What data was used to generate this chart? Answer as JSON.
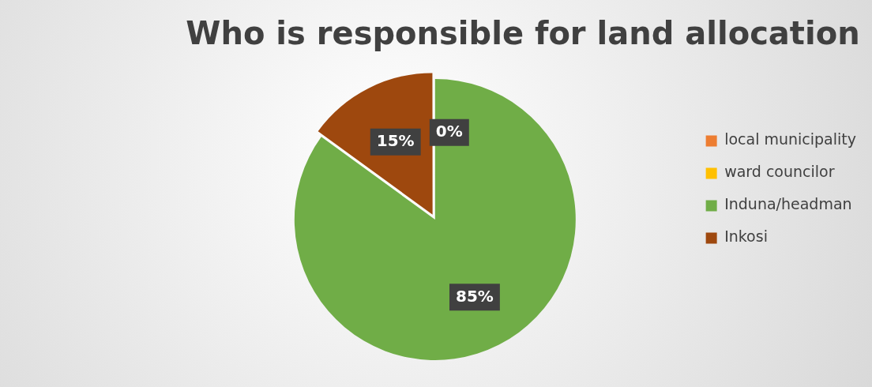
{
  "chart_data": {
    "type": "pie",
    "title": "Who is responsible for land allocation",
    "categories": [
      "local municipality",
      "ward councilor",
      "Induna/headman",
      "Inkosi"
    ],
    "values": [
      0,
      0,
      85,
      15
    ],
    "colors": [
      "#ed7d31",
      "#ffc000",
      "#70ad47",
      "#9e480e"
    ],
    "value_labels": [
      "0%",
      null,
      "85%",
      "15%"
    ],
    "legend": "right"
  }
}
